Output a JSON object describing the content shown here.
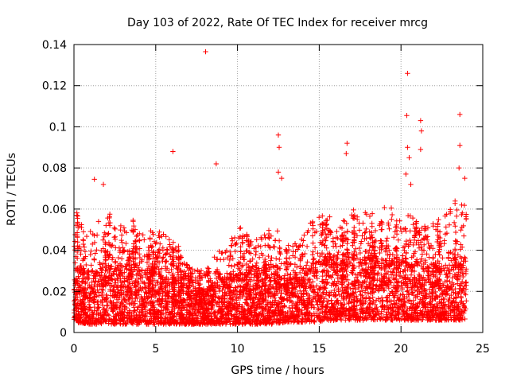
{
  "chart_data": {
    "type": "scatter",
    "title": "Day 103 of 2022, Rate Of TEC Index for receiver mrcg",
    "xlabel": "GPS time / hours",
    "ylabel": "ROTI / TECUs",
    "xlim": [
      0,
      25
    ],
    "ylim": [
      0,
      0.14
    ],
    "x_ticks": [
      "0",
      "5",
      "10",
      "15",
      "20",
      "25"
    ],
    "y_ticks": [
      "0",
      "0.02",
      "0.04",
      "0.06",
      "0.08",
      "0.1",
      "0.12",
      "0.14"
    ],
    "grid": true,
    "marker": "+",
    "colors": {
      "series": "#ff0000",
      "axis": "#000000",
      "grid": "#a0a0a0"
    },
    "x_range_data": [
      0,
      24
    ],
    "notable_points": [
      {
        "x": 8.05,
        "y": 0.1365
      },
      {
        "x": 20.4,
        "y": 0.126
      },
      {
        "x": 23.6,
        "y": 0.106
      },
      {
        "x": 20.35,
        "y": 0.1055
      },
      {
        "x": 21.2,
        "y": 0.103
      },
      {
        "x": 21.25,
        "y": 0.098
      },
      {
        "x": 12.5,
        "y": 0.096
      },
      {
        "x": 12.55,
        "y": 0.09
      },
      {
        "x": 16.7,
        "y": 0.092
      },
      {
        "x": 16.65,
        "y": 0.087
      },
      {
        "x": 21.2,
        "y": 0.089
      },
      {
        "x": 23.6,
        "y": 0.091
      },
      {
        "x": 20.4,
        "y": 0.09
      },
      {
        "x": 6.05,
        "y": 0.088
      },
      {
        "x": 8.7,
        "y": 0.082
      },
      {
        "x": 20.5,
        "y": 0.085
      },
      {
        "x": 12.5,
        "y": 0.078
      },
      {
        "x": 23.55,
        "y": 0.08
      },
      {
        "x": 1.25,
        "y": 0.0745
      },
      {
        "x": 12.7,
        "y": 0.075
      },
      {
        "x": 23.9,
        "y": 0.075
      },
      {
        "x": 1.8,
        "y": 0.072
      },
      {
        "x": 20.3,
        "y": 0.077
      },
      {
        "x": 20.6,
        "y": 0.072
      }
    ],
    "envelope": {
      "hours": [
        0,
        1,
        2,
        3,
        4,
        5,
        6,
        7,
        8,
        9,
        10,
        11,
        12,
        13,
        14,
        15,
        16,
        17,
        18,
        19,
        20,
        21,
        22,
        23,
        24
      ],
      "upper": [
        0.055,
        0.05,
        0.058,
        0.052,
        0.05,
        0.052,
        0.045,
        0.032,
        0.03,
        0.042,
        0.05,
        0.048,
        0.05,
        0.042,
        0.048,
        0.06,
        0.05,
        0.06,
        0.058,
        0.062,
        0.06,
        0.055,
        0.05,
        0.06,
        0.065
      ],
      "lower": [
        0.005,
        0.004,
        0.004,
        0.004,
        0.004,
        0.004,
        0.004,
        0.004,
        0.004,
        0.004,
        0.004,
        0.004,
        0.004,
        0.005,
        0.005,
        0.005,
        0.006,
        0.006,
        0.006,
        0.006,
        0.006,
        0.006,
        0.006,
        0.006,
        0.006
      ],
      "dense_max": [
        0.03,
        0.028,
        0.032,
        0.03,
        0.03,
        0.03,
        0.026,
        0.022,
        0.02,
        0.025,
        0.028,
        0.028,
        0.03,
        0.025,
        0.028,
        0.035,
        0.032,
        0.035,
        0.035,
        0.035,
        0.034,
        0.032,
        0.03,
        0.032,
        0.035
      ],
      "points_per_hour": 200
    }
  }
}
